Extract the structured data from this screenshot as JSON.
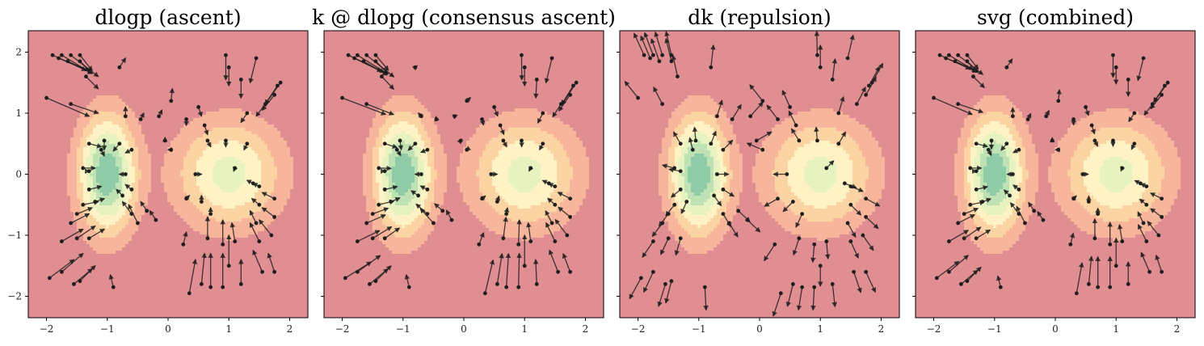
{
  "chart_data": [
    {
      "type": "quiver-over-contour",
      "title": "dlogp (ascent)",
      "xlim": [
        -2.3,
        2.3
      ],
      "ylim": [
        -2.35,
        2.35
      ],
      "xticks": [
        -2,
        -1,
        0,
        1,
        2
      ],
      "yticks": [
        -2,
        -1,
        0,
        1,
        2
      ],
      "show_ytick_labels": true,
      "grid": false,
      "density": {
        "components": [
          {
            "mean": [
              -1,
              0
            ],
            "std": [
              0.3,
              0.6
            ],
            "weight": 0.5
          },
          {
            "mean": [
              1,
              0
            ],
            "std": [
              0.55,
              0.55
            ],
            "weight": 0.5
          }
        ]
      },
      "vector_field": "score",
      "arrows": [
        {
          "x": -1.9,
          "y": 1.95,
          "u": 0.55,
          "v": -0.25
        },
        {
          "x": -1.75,
          "y": 1.95,
          "u": 0.5,
          "v": -0.3
        },
        {
          "x": -1.6,
          "y": 1.95,
          "u": 0.45,
          "v": -0.35
        },
        {
          "x": -1.45,
          "y": 1.95,
          "u": 0.2,
          "v": -0.25
        },
        {
          "x": -1.8,
          "y": 1.9,
          "u": 0.5,
          "v": -0.2
        },
        {
          "x": -1.65,
          "y": 1.85,
          "u": 0.4,
          "v": -0.2
        },
        {
          "x": -1.45,
          "y": 1.85,
          "u": 0.2,
          "v": -0.2
        },
        {
          "x": -0.8,
          "y": 1.75,
          "u": 0.1,
          "v": 0.15
        },
        {
          "x": -1.35,
          "y": 1.6,
          "u": 0.2,
          "v": -0.2
        },
        {
          "x": -2.0,
          "y": 1.25,
          "u": 0.7,
          "v": -0.3
        },
        {
          "x": -1.6,
          "y": 1.15,
          "u": 0.45,
          "v": -0.15
        },
        {
          "x": -0.7,
          "y": 0.95,
          "u": 0.0,
          "v": 0.15
        },
        {
          "x": -0.45,
          "y": 0.9,
          "u": 0.05,
          "v": 0.1
        },
        {
          "x": -0.15,
          "y": 0.95,
          "u": 0.05,
          "v": 0.1
        },
        {
          "x": 0.05,
          "y": 1.2,
          "u": 0.02,
          "v": 0.2
        },
        {
          "x": -1.3,
          "y": 0.5,
          "u": 0.2,
          "v": -0.05
        },
        {
          "x": -1.05,
          "y": 0.55,
          "u": 0.0,
          "v": -0.15
        },
        {
          "x": -0.8,
          "y": 0.5,
          "u": -0.1,
          "v": -0.12
        },
        {
          "x": -1.1,
          "y": 0.4,
          "u": 0.05,
          "v": -0.1
        },
        {
          "x": -1.4,
          "y": 0.1,
          "u": 0.2,
          "v": 0.0
        },
        {
          "x": -0.7,
          "y": 0.0,
          "u": -0.1,
          "v": 0.0
        },
        {
          "x": -0.6,
          "y": 0.4,
          "u": -0.1,
          "v": -0.05
        },
        {
          "x": -1.4,
          "y": -0.5,
          "u": 0.25,
          "v": 0.05
        },
        {
          "x": -1.3,
          "y": -0.25,
          "u": 0.2,
          "v": 0.05
        },
        {
          "x": -1.2,
          "y": -0.45,
          "u": 0.15,
          "v": 0.05
        },
        {
          "x": -0.75,
          "y": -0.35,
          "u": -0.1,
          "v": 0.1
        },
        {
          "x": -0.6,
          "y": -0.25,
          "u": -0.1,
          "v": 0.08
        },
        {
          "x": -1.6,
          "y": -0.8,
          "u": 0.3,
          "v": 0.15
        },
        {
          "x": -1.5,
          "y": -0.65,
          "u": 0.25,
          "v": 0.1
        },
        {
          "x": -1.75,
          "y": -1.1,
          "u": 0.35,
          "v": 0.2
        },
        {
          "x": -1.5,
          "y": -1.05,
          "u": 0.3,
          "v": 0.2
        },
        {
          "x": -1.3,
          "y": -1.05,
          "u": 0.25,
          "v": 0.15
        },
        {
          "x": -0.6,
          "y": -0.65,
          "u": -0.15,
          "v": 0.2
        },
        {
          "x": -0.5,
          "y": -0.8,
          "u": -0.15,
          "v": 0.3
        },
        {
          "x": -0.35,
          "y": -0.6,
          "u": -0.1,
          "v": 0.15
        },
        {
          "x": -0.2,
          "y": -0.75,
          "u": -0.1,
          "v": 0.15
        },
        {
          "x": -1.95,
          "y": -1.7,
          "u": 0.4,
          "v": 0.3
        },
        {
          "x": -1.75,
          "y": -1.6,
          "u": 0.35,
          "v": 0.3
        },
        {
          "x": -1.55,
          "y": -1.8,
          "u": 0.3,
          "v": 0.25
        },
        {
          "x": -1.45,
          "y": -1.75,
          "u": 0.25,
          "v": 0.25
        },
        {
          "x": -0.9,
          "y": -1.85,
          "u": -0.05,
          "v": 0.2
        },
        {
          "x": 0.05,
          "y": 0.4,
          "u": -0.05,
          "v": 0.0
        },
        {
          "x": -0.05,
          "y": 0.55,
          "u": 0.0,
          "v": 0.05
        },
        {
          "x": 0.6,
          "y": 0.8,
          "u": 0.05,
          "v": -0.15
        },
        {
          "x": 0.3,
          "y": 0.9,
          "u": 0.0,
          "v": -0.1
        },
        {
          "x": 0.65,
          "y": 0.55,
          "u": 0.05,
          "v": -0.1
        },
        {
          "x": 0.95,
          "y": 0.55,
          "u": 0.0,
          "v": -0.1
        },
        {
          "x": 0.45,
          "y": 0.0,
          "u": 0.1,
          "v": 0.0
        },
        {
          "x": 1.1,
          "y": 0.1,
          "u": -0.02,
          "v": -0.05
        },
        {
          "x": 1.3,
          "y": 0.5,
          "u": -0.05,
          "v": -0.1
        },
        {
          "x": 1.4,
          "y": -0.15,
          "u": -0.1,
          "v": 0.05
        },
        {
          "x": 1.5,
          "y": -0.2,
          "u": -0.1,
          "v": 0.05
        },
        {
          "x": 1.75,
          "y": -0.4,
          "u": -0.2,
          "v": 0.1
        },
        {
          "x": 1.5,
          "y": -0.5,
          "u": -0.12,
          "v": 0.1
        },
        {
          "x": 0.3,
          "y": -0.4,
          "u": 0.05,
          "v": 0.05
        },
        {
          "x": 0.55,
          "y": -0.45,
          "u": 0.0,
          "v": 0.1
        },
        {
          "x": 0.7,
          "y": -0.65,
          "u": 0.0,
          "v": 0.1
        },
        {
          "x": 1.45,
          "y": -0.8,
          "u": -0.1,
          "v": 0.2
        },
        {
          "x": 1.75,
          "y": -0.7,
          "u": -0.2,
          "v": 0.15
        },
        {
          "x": 1.1,
          "y": -1.1,
          "u": -0.05,
          "v": 0.3
        },
        {
          "x": 1.5,
          "y": -1.1,
          "u": -0.15,
          "v": 0.3
        },
        {
          "x": 1.7,
          "y": -1.0,
          "u": -0.2,
          "v": 0.25
        },
        {
          "x": 0.25,
          "y": -1.15,
          "u": 0.05,
          "v": 0.2
        },
        {
          "x": 0.65,
          "y": -1.05,
          "u": 0.0,
          "v": 0.35
        },
        {
          "x": 0.9,
          "y": -1.15,
          "u": 0.0,
          "v": 0.4
        },
        {
          "x": 1.0,
          "y": -1.5,
          "u": 0.0,
          "v": 0.5
        },
        {
          "x": 0.55,
          "y": -1.8,
          "u": 0.05,
          "v": 0.5
        },
        {
          "x": 0.7,
          "y": -1.85,
          "u": 0.0,
          "v": 0.55
        },
        {
          "x": 0.9,
          "y": -1.85,
          "u": 0.0,
          "v": 0.55
        },
        {
          "x": 0.35,
          "y": -1.95,
          "u": 0.1,
          "v": 0.55
        },
        {
          "x": 1.55,
          "y": -1.6,
          "u": -0.15,
          "v": 0.35
        },
        {
          "x": 1.75,
          "y": -1.6,
          "u": -0.1,
          "v": 0.3
        },
        {
          "x": 1.2,
          "y": -1.8,
          "u": 0.0,
          "v": 0.4
        },
        {
          "x": 0.95,
          "y": 1.95,
          "u": 0.0,
          "v": -0.4
        },
        {
          "x": 1.0,
          "y": 1.75,
          "u": 0.0,
          "v": -0.3
        },
        {
          "x": 1.2,
          "y": 1.55,
          "u": 0.0,
          "v": -0.3
        },
        {
          "x": 1.45,
          "y": 1.9,
          "u": -0.1,
          "v": -0.4
        },
        {
          "x": 1.85,
          "y": 1.5,
          "u": -0.25,
          "v": -0.35
        },
        {
          "x": 1.8,
          "y": 1.45,
          "u": -0.2,
          "v": -0.3
        },
        {
          "x": 1.75,
          "y": 1.3,
          "u": -0.2,
          "v": -0.25
        },
        {
          "x": 1.6,
          "y": 1.15,
          "u": -0.15,
          "v": -0.2
        },
        {
          "x": 1.3,
          "y": 1.0,
          "u": -0.1,
          "v": -0.15
        },
        {
          "x": 0.5,
          "y": 1.1,
          "u": 0.05,
          "v": -0.15
        },
        {
          "x": -1.3,
          "y": 0.05,
          "u": 0.0,
          "v": 0.0
        }
      ]
    },
    {
      "type": "quiver-over-contour",
      "title": "k @ dlopg (consensus ascent)",
      "xlim": [
        -2.3,
        2.3
      ],
      "ylim": [
        -2.35,
        2.35
      ],
      "xticks": [
        -2,
        -1,
        0,
        1,
        2
      ],
      "yticks": [
        -2,
        -1,
        0,
        1,
        2
      ],
      "show_ytick_labels": false,
      "grid": false,
      "vector_field": "smoothed-score",
      "arrows": "same particles as panel 1, smoothed directions"
    },
    {
      "type": "quiver-over-contour",
      "title": "dk (repulsion)",
      "xlim": [
        -2.3,
        2.3
      ],
      "ylim": [
        -2.35,
        2.35
      ],
      "xticks": [
        -2,
        -1,
        0,
        1,
        2
      ],
      "yticks": [
        -2,
        -1,
        0,
        1,
        2
      ],
      "show_ytick_labels": false,
      "grid": false,
      "vector_field": "repulsion",
      "arrows": "same particles as panel 1, repulsive directions"
    },
    {
      "type": "quiver-over-contour",
      "title": "svg (combined)",
      "xlim": [
        -2.3,
        2.3
      ],
      "ylim": [
        -2.35,
        2.35
      ],
      "xticks": [
        -2,
        -1,
        0,
        1,
        2
      ],
      "yticks": [
        -2,
        -1,
        0,
        1,
        2
      ],
      "show_ytick_labels": false,
      "grid": false,
      "vector_field": "combined",
      "arrows": "same particles as panel 1, combined directions"
    }
  ],
  "colors": {
    "contour_levels": [
      "#e08e91",
      "#f7b59c",
      "#fcd4a4",
      "#fff3c6",
      "#e6f3c0",
      "#bfe2b5",
      "#8ecba6"
    ],
    "arrow": "#1e1e1e",
    "axes": "#000000"
  }
}
